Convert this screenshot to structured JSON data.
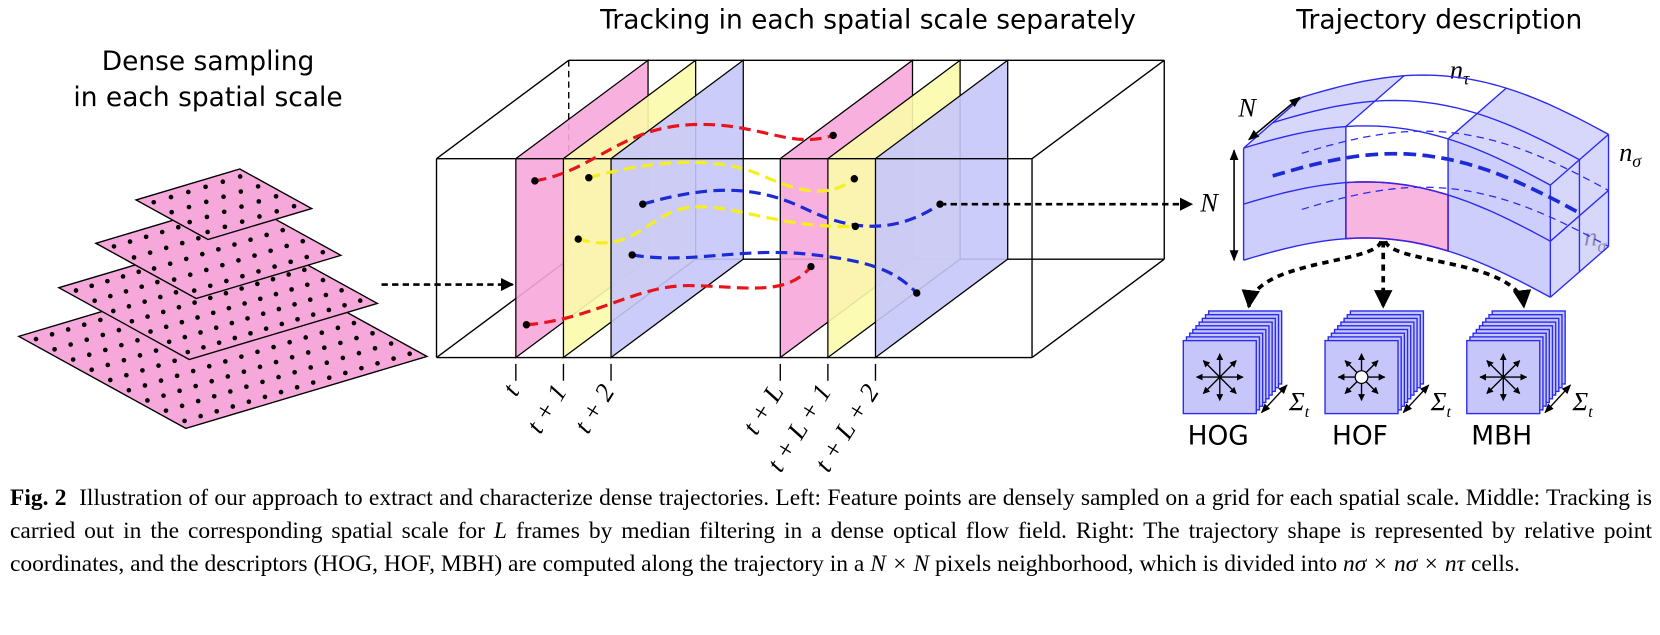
{
  "left_panel": {
    "title_lines": [
      "Dense sampling",
      "in each spatial scale"
    ]
  },
  "middle_panel": {
    "title": "Tracking in each spatial scale separately",
    "frame_labels": [
      "t",
      "t + 1",
      "t + 2",
      "t + L",
      "t + L + 1",
      "t + L + 2"
    ]
  },
  "right_panel": {
    "title": "Trajectory description",
    "depth_label": "N",
    "height_label": "N",
    "tau_label": {
      "base": "n",
      "sub": "τ"
    },
    "sigma_label_top": {
      "base": "n",
      "sub": "σ"
    },
    "sigma_label_bottom": {
      "base": "n",
      "sub": "σ"
    },
    "descriptors": [
      {
        "label": "HOG",
        "sum": {
          "base": "Σ",
          "sub": "t"
        }
      },
      {
        "label": "HOF",
        "sum": {
          "base": "Σ",
          "sub": "t"
        }
      },
      {
        "label": "MBH",
        "sum": {
          "base": "Σ",
          "sub": "t"
        }
      }
    ]
  },
  "caption": {
    "label": "Fig. 2",
    "segments": [
      "Illustration of our approach to extract and characterize dense trajectories. Left: Feature points are densely sampled on a grid for each spatial scale. Middle: Tracking is carried out in the corresponding spatial scale for ",
      "L",
      " frames by median filtering in a dense optical flow field. Right: The trajectory shape is represented by relative point coordinates, and the descriptors (HOG, HOF, MBH) are computed along the trajectory in a ",
      "N × N",
      " pixels neighborhood, which is divided into ",
      "nσ × nσ × nτ",
      " cells."
    ]
  }
}
